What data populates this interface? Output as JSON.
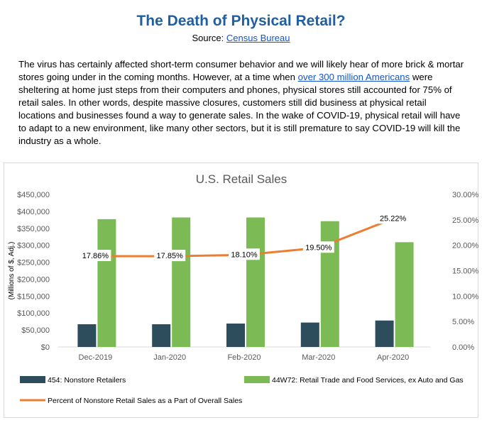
{
  "header": {
    "title": "The Death of Physical Retail?",
    "source_prefix": "Source: ",
    "source_link": "Census Bureau"
  },
  "article": {
    "part1": "The virus has certainly affected short-term consumer behavior and we will likely hear of more brick & mortar stores going under in the coming months. However, at a time when ",
    "link": "over 300 million Americans",
    "part2": " were sheltering at home just steps from their computers and phones, physical stores still accounted for 75% of retail sales. In other words, despite massive closures, customers still did business at physical retail locations and businesses found a way to generate sales. In the wake of COVID-19, physical retail will have to adapt to a new environment, like many other sectors, but it is still premature to say COVID-19 will kill the industry as a whole."
  },
  "chart_data": {
    "type": "bar",
    "title": "U.S. Retail Sales",
    "ylabel": "(Millions of $, Adj.)",
    "categories": [
      "Dec-2019",
      "Jan-2020",
      "Feb-2020",
      "Mar-2020",
      "Apr-2020"
    ],
    "ylim": [
      0,
      450000
    ],
    "y2lim": [
      0,
      30
    ],
    "y_ticks": [
      "$0",
      "$50,000",
      "$100,000",
      "$150,000",
      "$200,000",
      "$250,000",
      "$300,000",
      "$350,000",
      "$400,000",
      "$450,000"
    ],
    "y2_ticks": [
      "0.00%",
      "5.00%",
      "10.00%",
      "15.00%",
      "20.00%",
      "25.00%",
      "30.00%"
    ],
    "series": [
      {
        "name": "454: Nonstore Retailers",
        "type": "bar",
        "color": "#2e4d5c",
        "values": [
          67000,
          67000,
          69000,
          72000,
          78000
        ]
      },
      {
        "name": "44W72: Retail Trade and Food Services, ex Auto and Gas",
        "type": "bar",
        "color": "#7cba55",
        "values": [
          377000,
          382000,
          382000,
          371000,
          309000
        ]
      },
      {
        "name": "Percent of Nonstore Retail Sales as a Part of Overall Sales",
        "type": "line",
        "axis": "secondary",
        "color": "#ed7d31",
        "values": [
          17.86,
          17.85,
          18.1,
          19.5,
          25.22
        ],
        "labels": [
          "17.86%",
          "17.85%",
          "18.10%",
          "19.50%",
          "25.22%"
        ]
      }
    ]
  }
}
